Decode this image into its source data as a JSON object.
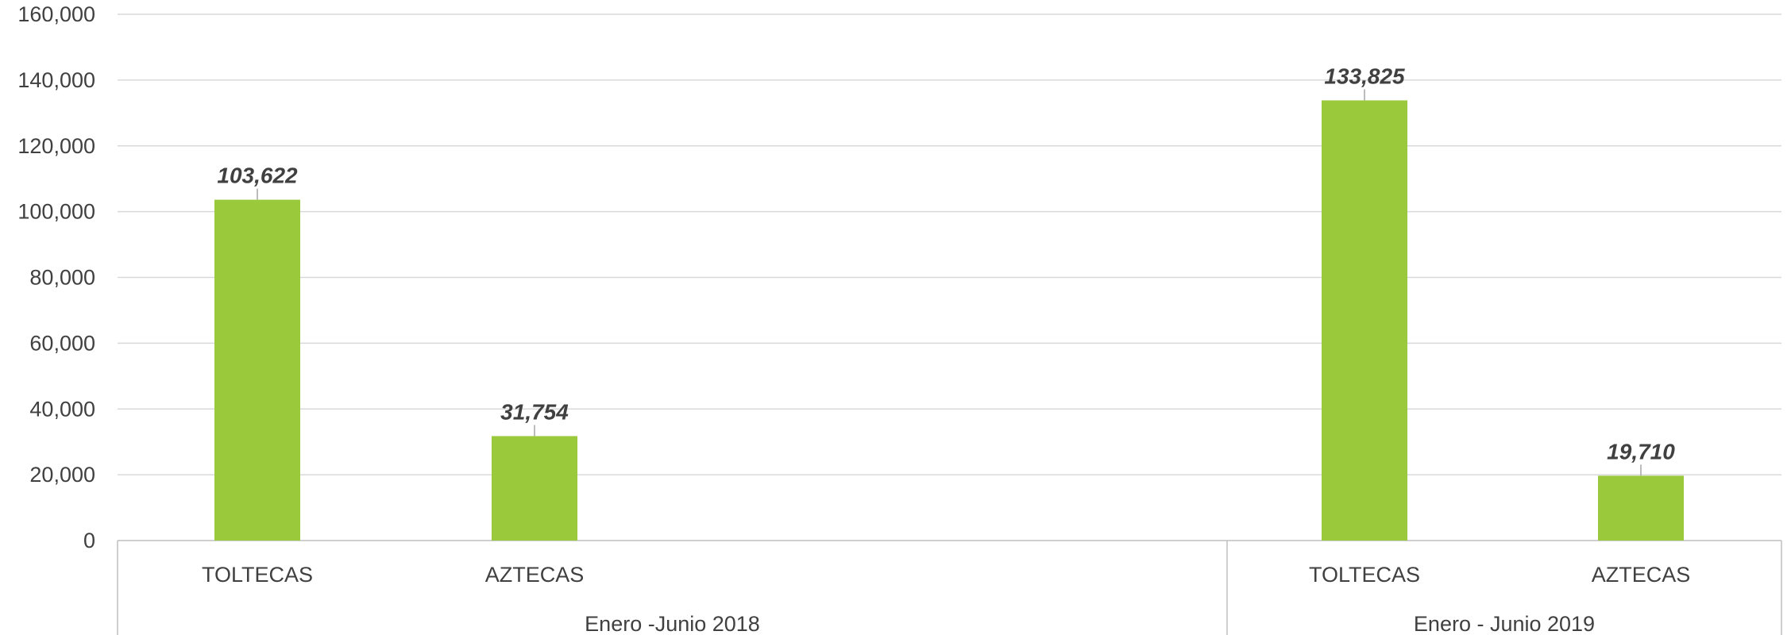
{
  "chart_data": {
    "type": "bar",
    "title": "",
    "xlabel": "",
    "ylabel": "",
    "ylim": [
      0,
      160000
    ],
    "y_ticks": [
      0,
      20000,
      40000,
      60000,
      80000,
      100000,
      120000,
      140000,
      160000
    ],
    "y_tick_labels": [
      "0",
      "20,000",
      "40,000",
      "60,000",
      "80,000",
      "100,000",
      "120,000",
      "140,000",
      "160,000"
    ],
    "grid": true,
    "legend": "none",
    "bar_color": "#9ACA3C",
    "groups": [
      {
        "label": "Enero -Junio 2018",
        "categories": [
          "TOLTECAS",
          "AZTECAS"
        ],
        "values": [
          103622,
          31754
        ],
        "value_labels": [
          "103,622",
          "31,754"
        ]
      },
      {
        "label": "Enero - Junio 2019",
        "categories": [
          "TOLTECAS",
          "AZTECAS"
        ],
        "values": [
          133825,
          19710
        ],
        "value_labels": [
          "133,825",
          "19,710"
        ]
      }
    ]
  }
}
